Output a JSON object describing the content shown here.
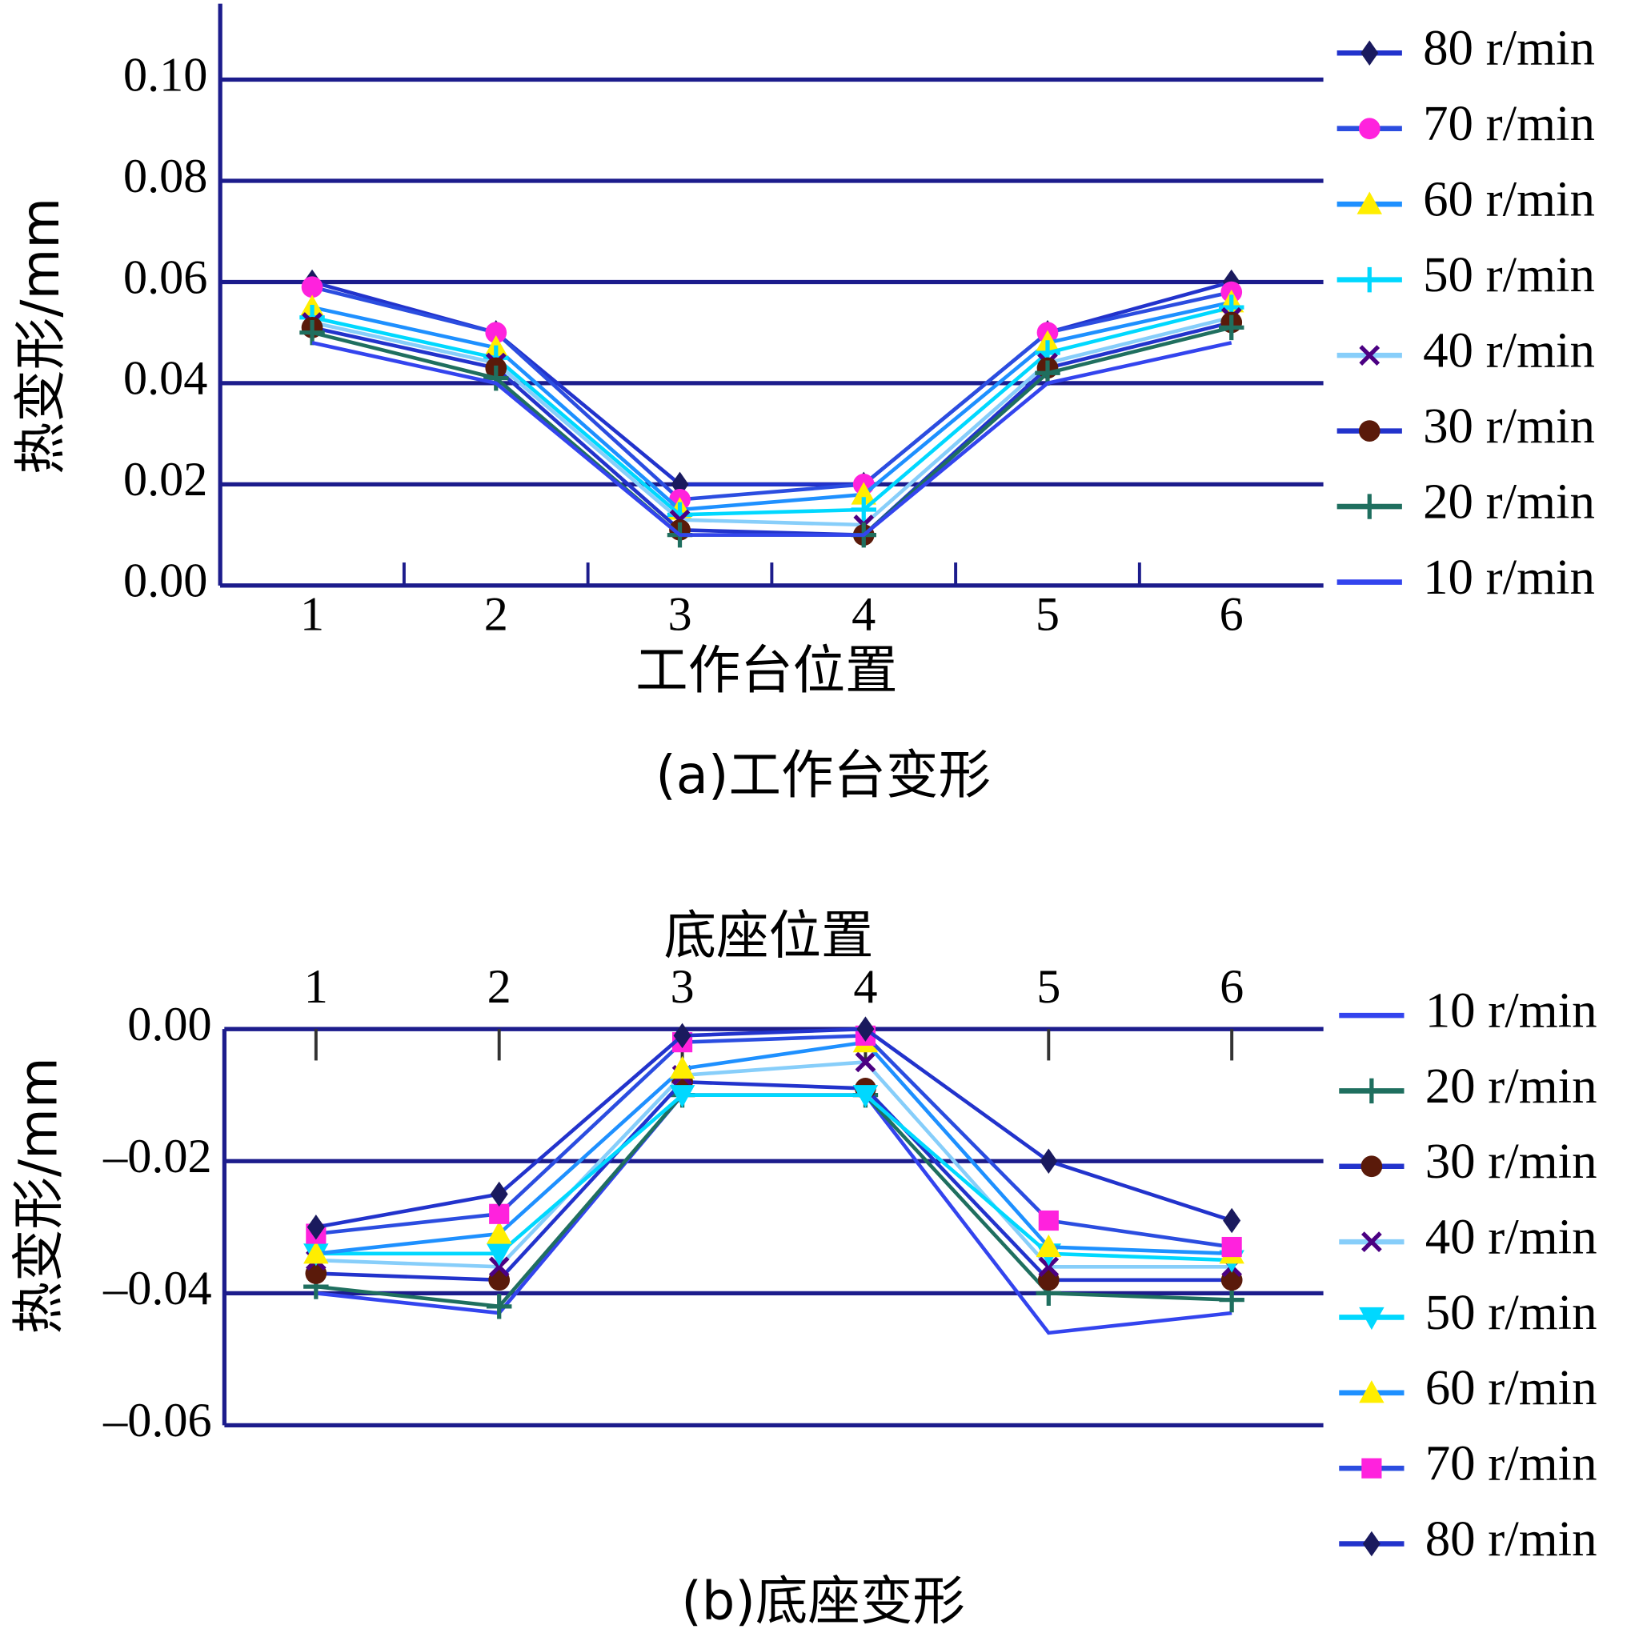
{
  "chart_data": [
    {
      "type": "line",
      "caption": "(a)工作台变形",
      "xlabel": "工作台位置",
      "ylabel": "热变形/mm",
      "categories": [
        "1",
        "2",
        "3",
        "4",
        "5",
        "6"
      ],
      "x_axis_position": "bottom",
      "ylim": [
        0,
        0.115
      ],
      "yticks": [
        {
          "value": 0,
          "label": "0.00"
        },
        {
          "value": 0.02,
          "label": "0.02"
        },
        {
          "value": 0.04,
          "label": "0.04"
        },
        {
          "value": 0.06,
          "label": "0.06"
        },
        {
          "value": 0.08,
          "label": "0.08"
        },
        {
          "value": 0.1,
          "label": "0.10"
        }
      ],
      "grid": true,
      "legend": "right",
      "series": [
        {
          "name": "80 r/min",
          "color": "#2233cc",
          "marker": "diamond",
          "marker_color": "#1a1a5e",
          "values": [
            0.06,
            0.05,
            0.02,
            0.02,
            0.05,
            0.06
          ]
        },
        {
          "name": "70 r/min",
          "color": "#2b4de0",
          "marker": "circle",
          "marker_color": "#ff22dd",
          "values": [
            0.059,
            0.05,
            0.017,
            0.02,
            0.05,
            0.058
          ]
        },
        {
          "name": "60 r/min",
          "color": "#1e90ff",
          "marker": "triangle",
          "marker_color": "#ffee00",
          "values": [
            0.055,
            0.047,
            0.015,
            0.018,
            0.048,
            0.056
          ]
        },
        {
          "name": "50 r/min",
          "color": "#00d8ff",
          "marker": "plus",
          "marker_color": "#00d8ff",
          "values": [
            0.053,
            0.045,
            0.014,
            0.015,
            0.046,
            0.055
          ]
        },
        {
          "name": "40 r/min",
          "color": "#87cefa",
          "marker": "x",
          "marker_color": "#4b0082",
          "values": [
            0.052,
            0.044,
            0.013,
            0.012,
            0.044,
            0.053
          ]
        },
        {
          "name": "30 r/min",
          "color": "#2233cc",
          "marker": "circle",
          "marker_color": "#5a1a0a",
          "values": [
            0.051,
            0.043,
            0.011,
            0.01,
            0.043,
            0.052
          ]
        },
        {
          "name": "20 r/min",
          "color": "#1f6f5f",
          "marker": "plus",
          "marker_color": "#1f6f5f",
          "values": [
            0.05,
            0.041,
            0.01,
            0.01,
            0.042,
            0.051
          ]
        },
        {
          "name": "10 r/min",
          "color": "#3344ee",
          "marker": "none",
          "marker_color": "#3344ee",
          "values": [
            0.048,
            0.04,
            0.01,
            0.01,
            0.04,
            0.048
          ]
        }
      ]
    },
    {
      "type": "line",
      "caption": "(b)底座变形",
      "xlabel": "底座位置",
      "ylabel": "热变形/mm",
      "categories": [
        "1",
        "2",
        "3",
        "4",
        "5",
        "6"
      ],
      "x_axis_position": "top",
      "ylim": [
        -0.06,
        0
      ],
      "yticks": [
        {
          "value": 0,
          "label": "0.00"
        },
        {
          "value": -0.02,
          "label": "–0.02"
        },
        {
          "value": -0.04,
          "label": "–0.04"
        },
        {
          "value": -0.06,
          "label": "–0.06"
        }
      ],
      "grid": true,
      "legend": "right",
      "series": [
        {
          "name": "10 r/min",
          "color": "#3344ee",
          "marker": "none",
          "marker_color": "#3344ee",
          "values": [
            -0.04,
            -0.043,
            -0.01,
            -0.01,
            -0.046,
            -0.043
          ]
        },
        {
          "name": "20 r/min",
          "color": "#1f6f5f",
          "marker": "plus",
          "marker_color": "#1f6f5f",
          "values": [
            -0.039,
            -0.042,
            -0.01,
            -0.01,
            -0.04,
            -0.041
          ]
        },
        {
          "name": "30 r/min",
          "color": "#2233cc",
          "marker": "circle",
          "marker_color": "#5a1a0a",
          "values": [
            -0.037,
            -0.038,
            -0.008,
            -0.009,
            -0.038,
            -0.038
          ]
        },
        {
          "name": "40 r/min",
          "color": "#87cefa",
          "marker": "x",
          "marker_color": "#4b0082",
          "values": [
            -0.035,
            -0.036,
            -0.007,
            -0.005,
            -0.036,
            -0.036
          ]
        },
        {
          "name": "50 r/min",
          "color": "#00d8ff",
          "marker": "triangle-down",
          "marker_color": "#00d8ff",
          "values": [
            -0.034,
            -0.034,
            -0.01,
            -0.01,
            -0.034,
            -0.035
          ]
        },
        {
          "name": "60 r/min",
          "color": "#1e90ff",
          "marker": "triangle",
          "marker_color": "#ffee00",
          "values": [
            -0.034,
            -0.031,
            -0.006,
            -0.002,
            -0.033,
            -0.034
          ]
        },
        {
          "name": "70 r/min",
          "color": "#2b4de0",
          "marker": "square",
          "marker_color": "#ff22dd",
          "values": [
            -0.031,
            -0.028,
            -0.002,
            -0.001,
            -0.029,
            -0.033
          ]
        },
        {
          "name": "80 r/min",
          "color": "#2233cc",
          "marker": "diamond",
          "marker_color": "#1a1a5e",
          "values": [
            -0.03,
            -0.025,
            -0.001,
            0,
            -0.02,
            -0.029
          ]
        }
      ]
    }
  ]
}
